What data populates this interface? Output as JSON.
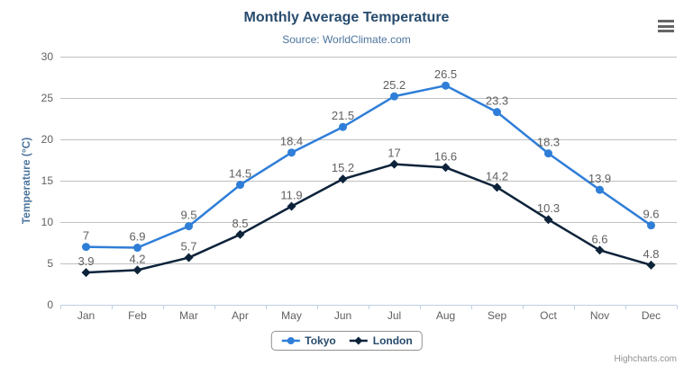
{
  "chart": {
    "credits": "Highcharts.com"
  },
  "colors": {
    "title": "#274b6d",
    "subtitle": "#4d759e",
    "axis_title": "#4d759e",
    "grid_line": "#c0c0c0",
    "axis_line": "#c0d0e0",
    "tick_label": "#606060",
    "data_label": "#606060",
    "legend_border": "#909090",
    "legend_text": "#274b6d",
    "credits_text": "#909090",
    "menu_icon": "#666666",
    "series_tokyo": "#2f7ed8",
    "series_london": "#0d233a"
  },
  "chart_data": {
    "type": "line",
    "title": "Monthly Average Temperature",
    "subtitle": "Source: WorldClimate.com",
    "categories": [
      "Jan",
      "Feb",
      "Mar",
      "Apr",
      "May",
      "Jun",
      "Jul",
      "Aug",
      "Sep",
      "Oct",
      "Nov",
      "Dec"
    ],
    "series": [
      {
        "name": "Tokyo",
        "color": "#2f7ed8",
        "marker": "circle",
        "values": [
          7,
          6.9,
          9.5,
          14.5,
          18.4,
          21.5,
          25.2,
          26.5,
          23.3,
          18.3,
          13.9,
          9.6
        ]
      },
      {
        "name": "London",
        "color": "#0d233a",
        "marker": "diamond",
        "values": [
          3.9,
          4.2,
          5.7,
          8.5,
          11.9,
          15.2,
          17,
          16.6,
          14.2,
          10.3,
          6.6,
          4.8
        ]
      }
    ],
    "xlabel": "",
    "ylabel": "Temperature (°C)",
    "ylim": [
      0,
      30
    ],
    "y_ticks": [
      0,
      5,
      10,
      15,
      20,
      25,
      30
    ],
    "grid": true,
    "legend_position": "bottom",
    "data_labels": true
  }
}
